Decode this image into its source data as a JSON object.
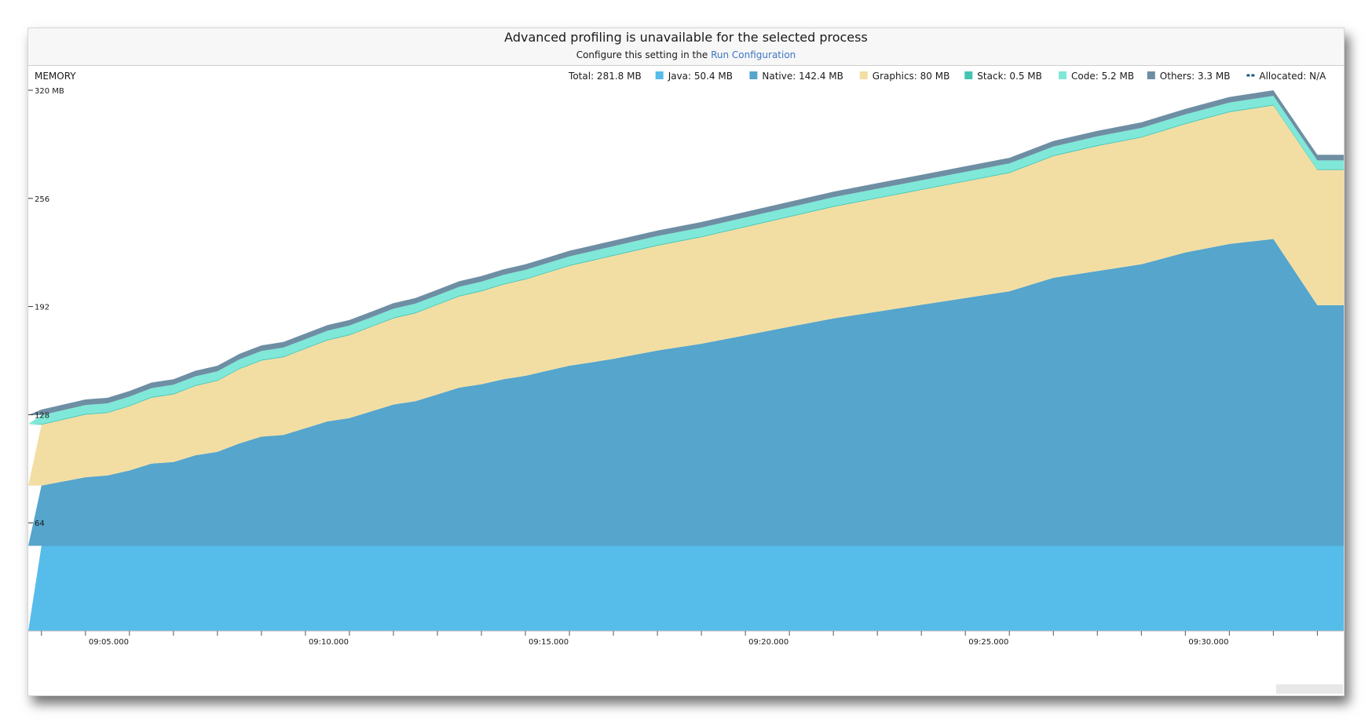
{
  "banner": {
    "title": "Advanced profiling is unavailable for the selected process",
    "subtitle_prefix": "Configure this setting in the",
    "link_text": "Run Configuration"
  },
  "legend": {
    "total": "Total: 281.8 MB",
    "items": [
      {
        "label": "Java: 50.4 MB",
        "color": "#56bcea",
        "icon": "square-swatch"
      },
      {
        "label": "Native: 142.4 MB",
        "color": "#55a5cc",
        "icon": "square-swatch"
      },
      {
        "label": "Graphics: 80 MB",
        "color": "#f2dea3",
        "icon": "square-swatch"
      },
      {
        "label": "Stack: 0.5 MB",
        "color": "#44c4b3",
        "icon": "square-swatch"
      },
      {
        "label": "Code: 5.2 MB",
        "color": "#7fe8d8",
        "icon": "square-swatch"
      },
      {
        "label": "Others: 3.3 MB",
        "color": "#6e8ea3",
        "icon": "square-swatch"
      },
      {
        "label": "Allocated: N/A",
        "color": "#1d5b7a",
        "icon": "dashed-line"
      }
    ]
  },
  "chart_data": {
    "type": "area",
    "stacked": true,
    "title": "MEMORY",
    "y_tick_labels": [
      "64",
      "128",
      "192",
      "256",
      "320 MB"
    ],
    "y_ticks": [
      64,
      128,
      192,
      256,
      320
    ],
    "ylim": [
      0,
      320
    ],
    "x_tick_labels": [
      "09:05.000",
      "09:10.000",
      "09:15.000",
      "09:20.000",
      "09:25.000",
      "09:30.000"
    ],
    "x_ticks_min": [
      5,
      10,
      15,
      20,
      25,
      30
    ],
    "x_minutes": [
      3.0,
      4.0,
      4.5,
      5.0,
      5.5,
      6.0,
      6.5,
      7.0,
      7.5,
      8.0,
      8.5,
      9.0,
      9.5,
      10.0,
      10.5,
      11.0,
      11.5,
      12.0,
      12.5,
      13.0,
      13.5,
      14.0,
      14.5,
      15.0,
      15.5,
      16.0,
      17.0,
      18.0,
      19.0,
      20.0,
      21.0,
      22.0,
      23.0,
      24.0,
      25.0,
      26.0,
      27.0,
      28.0,
      29.0,
      30.0,
      31.0,
      32.0
    ],
    "xlim": [
      2.7,
      32.6
    ],
    "series": [
      {
        "name": "Java",
        "color": "#56bcea",
        "values": [
          50.4,
          50.4,
          50.4,
          50.4,
          50.4,
          50.4,
          50.4,
          50.4,
          50.4,
          50.4,
          50.4,
          50.4,
          50.4,
          50.4,
          50.4,
          50.4,
          50.4,
          50.4,
          50.4,
          50.4,
          50.4,
          50.4,
          50.4,
          50.4,
          50.4,
          50.4,
          50.4,
          50.4,
          50.4,
          50.4,
          50.4,
          50.4,
          50.4,
          50.4,
          50.4,
          50.4,
          50.4,
          50.4,
          50.4,
          50.4,
          50.4,
          50.4
        ]
      },
      {
        "name": "Native",
        "color": "#55a5cc",
        "values": [
          35.6,
          40.6,
          41.6,
          44.6,
          48.6,
          49.6,
          53.6,
          55.6,
          60.6,
          64.6,
          65.6,
          69.6,
          73.6,
          75.6,
          79.6,
          83.6,
          85.6,
          89.6,
          93.6,
          95.6,
          98.6,
          100.6,
          103.6,
          106.6,
          108.6,
          110.6,
          115.6,
          119.6,
          124.6,
          129.6,
          134.6,
          138.6,
          142.6,
          146.6,
          150.6,
          158.6,
          162.6,
          166.6,
          173.6,
          178.6,
          181.6,
          142.4
        ]
      },
      {
        "name": "Graphics",
        "color": "#f2dea3",
        "values": [
          36.0,
          37.0,
          37.0,
          38.0,
          39.0,
          40.0,
          41.0,
          42.0,
          44.0,
          45.0,
          46.0,
          47.0,
          48.0,
          49.0,
          50.0,
          51.0,
          52.0,
          53.0,
          54.0,
          55.0,
          56.0,
          57.0,
          58.0,
          59.0,
          60.0,
          61.0,
          62.0,
          63.0,
          64.0,
          65.0,
          66.0,
          67.0,
          68.0,
          69.0,
          70.0,
          72.0,
          74.0,
          75.0,
          76.0,
          78.0,
          79.0,
          80.0
        ]
      },
      {
        "name": "Stack",
        "color": "#44c4b3",
        "values": [
          0.5,
          0.5,
          0.5,
          0.5,
          0.5,
          0.5,
          0.5,
          0.5,
          0.5,
          0.5,
          0.5,
          0.5,
          0.5,
          0.5,
          0.5,
          0.5,
          0.5,
          0.5,
          0.5,
          0.5,
          0.5,
          0.5,
          0.5,
          0.5,
          0.5,
          0.5,
          0.5,
          0.5,
          0.5,
          0.5,
          0.5,
          0.5,
          0.5,
          0.5,
          0.5,
          0.5,
          0.5,
          0.5,
          0.5,
          0.5,
          0.5,
          0.5
        ]
      },
      {
        "name": "Code",
        "color": "#7fe8d8",
        "values": [
          5.2,
          5.2,
          5.2,
          5.2,
          5.2,
          5.2,
          5.2,
          5.2,
          5.2,
          5.2,
          5.2,
          5.2,
          5.2,
          5.2,
          5.2,
          5.2,
          5.2,
          5.2,
          5.2,
          5.2,
          5.2,
          5.2,
          5.2,
          5.2,
          5.2,
          5.2,
          5.2,
          5.2,
          5.2,
          5.2,
          5.2,
          5.2,
          5.2,
          5.2,
          5.2,
          5.2,
          5.2,
          5.2,
          5.2,
          5.2,
          5.2,
          5.2
        ]
      },
      {
        "name": "Others",
        "color": "#6e8ea3",
        "values": [
          3.3,
          3.3,
          3.3,
          3.3,
          3.3,
          3.3,
          3.3,
          3.3,
          3.3,
          3.3,
          3.3,
          3.3,
          3.3,
          3.3,
          3.3,
          3.3,
          3.3,
          3.3,
          3.3,
          3.3,
          3.3,
          3.3,
          3.3,
          3.3,
          3.3,
          3.3,
          3.3,
          3.3,
          3.3,
          3.3,
          3.3,
          3.3,
          3.3,
          3.3,
          3.3,
          3.3,
          3.3,
          3.3,
          3.3,
          3.3,
          3.3,
          3.3
        ]
      }
    ],
    "grid": false,
    "legend_position": "top-right"
  }
}
